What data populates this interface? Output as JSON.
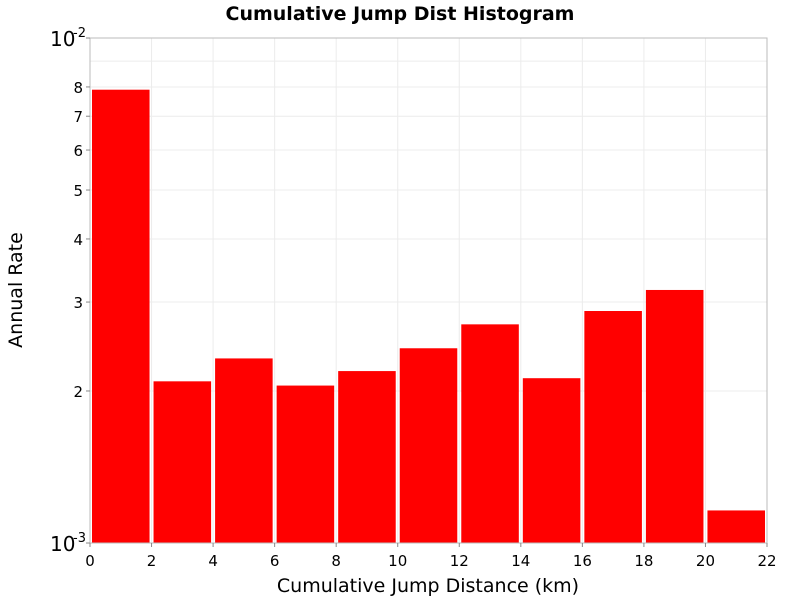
{
  "chart_data": {
    "type": "bar",
    "title": "Cumulative Jump Dist Histogram",
    "xlabel": "Cumulative Jump Distance (km)",
    "ylabel": "Annual Rate",
    "xlim": [
      0,
      22
    ],
    "ylim": [
      0.001,
      0.01
    ],
    "yscale": "log",
    "grid": true,
    "bar_color": "#ff0000",
    "x_ticks": [
      "0",
      "2",
      "4",
      "6",
      "8",
      "10",
      "12",
      "14",
      "16",
      "18",
      "20",
      "22"
    ],
    "y_minor_tick_labels": [
      "2",
      "3",
      "4",
      "5",
      "6",
      "7",
      "8"
    ],
    "y_major_tick_labels": [
      {
        "base": "10",
        "exp": "-3"
      },
      {
        "base": "10",
        "exp": "-2"
      }
    ],
    "bins": [
      {
        "x0": 0,
        "x1": 2,
        "value": 0.0079
      },
      {
        "x0": 2,
        "x1": 4,
        "value": 0.00209
      },
      {
        "x0": 4,
        "x1": 6,
        "value": 0.00232
      },
      {
        "x0": 6,
        "x1": 8,
        "value": 0.00205
      },
      {
        "x0": 8,
        "x1": 10,
        "value": 0.00219
      },
      {
        "x0": 10,
        "x1": 12,
        "value": 0.00243
      },
      {
        "x0": 12,
        "x1": 14,
        "value": 0.00271
      },
      {
        "x0": 14,
        "x1": 16,
        "value": 0.00212
      },
      {
        "x0": 16,
        "x1": 18,
        "value": 0.00288
      },
      {
        "x0": 18,
        "x1": 20,
        "value": 0.00317
      },
      {
        "x0": 20,
        "x1": 22,
        "value": 0.00116
      }
    ]
  }
}
